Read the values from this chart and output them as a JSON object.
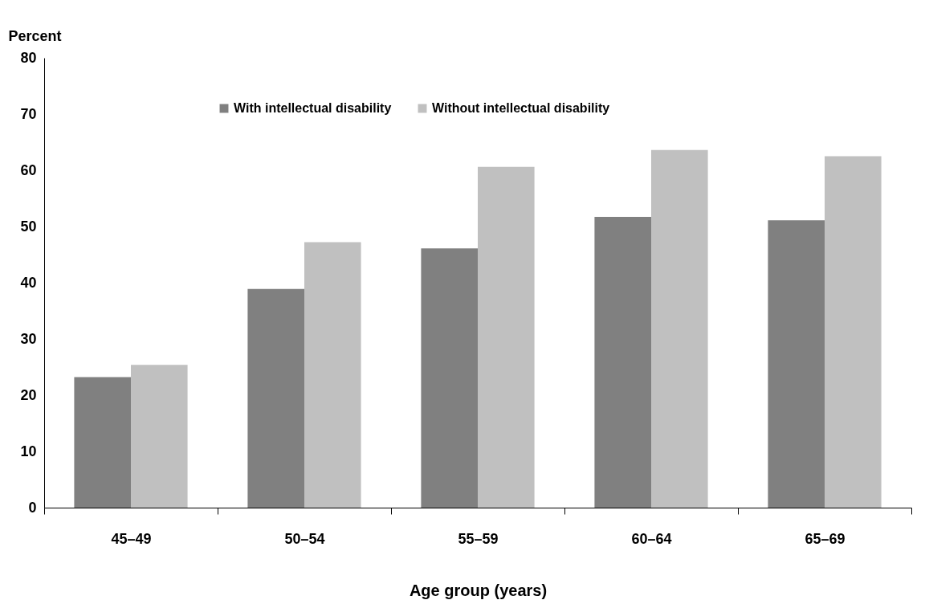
{
  "chart_data": {
    "type": "bar",
    "xlabel": "Age group (years)",
    "ylabel": "Percent",
    "categories": [
      "45–49",
      "50–54",
      "55–59",
      "60–64",
      "65–69"
    ],
    "series": [
      {
        "name": "With intellectual disability",
        "color": "#808080",
        "values": [
          23.2,
          38.9,
          46.1,
          51.7,
          51.1
        ]
      },
      {
        "name": "Without intellectual disability",
        "color": "#c0c0c0",
        "values": [
          25.4,
          47.2,
          60.6,
          63.6,
          62.5
        ]
      }
    ],
    "ylim": [
      0,
      80
    ],
    "yticks": [
      0,
      10,
      20,
      30,
      40,
      50,
      60,
      70,
      80
    ],
    "grid": false,
    "legend": "top"
  }
}
